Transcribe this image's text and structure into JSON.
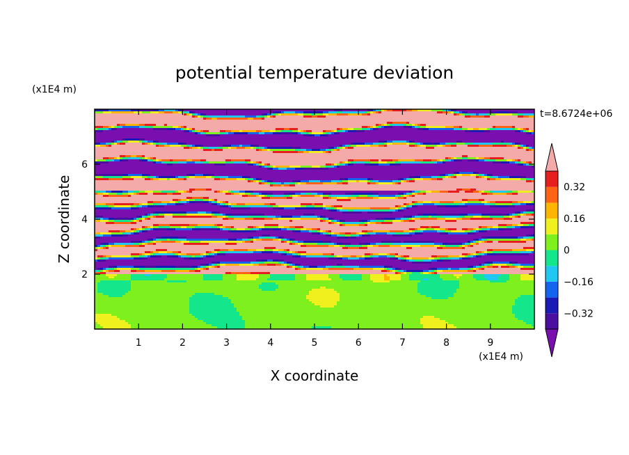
{
  "chart_data": {
    "type": "heatmap",
    "title": "potential temperature deviation",
    "xlabel": "X coordinate",
    "ylabel": "Z coordinate",
    "x_unit_label": "(x1E4 m)",
    "y_unit_label": "(x1E4 m)",
    "time_label": "t=8.6724e+06",
    "xlim": [
      0,
      10
    ],
    "ylim": [
      0,
      8
    ],
    "x_ticks": [
      1,
      2,
      3,
      4,
      5,
      6,
      7,
      8,
      9
    ],
    "y_ticks": [
      2,
      4,
      6
    ],
    "grid": false,
    "colorbar": {
      "levels": [
        -0.48,
        -0.4,
        -0.32,
        -0.24,
        -0.16,
        -0.08,
        0,
        0.08,
        0.16,
        0.24,
        0.32,
        0.4,
        0.48
      ],
      "colors": [
        "#7a0fb0",
        "#4a0fa0",
        "#1a1ab4",
        "#1464f0",
        "#1ec8f0",
        "#14e68c",
        "#7ef01e",
        "#f0f01e",
        "#ffb400",
        "#ff6414",
        "#e61e1e",
        "#f5aaaa"
      ],
      "tick_labels": [
        {
          "value": 0.32,
          "label": "0.32"
        },
        {
          "value": 0.16,
          "label": "0.16"
        },
        {
          "value": 0,
          "label": "0"
        },
        {
          "value": -0.16,
          "label": "−0.16"
        },
        {
          "value": -0.32,
          "label": "−0.32"
        }
      ],
      "extend": "both"
    },
    "regions": [
      {
        "z_range": [
          0,
          2
        ],
        "pattern": "lower layer mostly 0 to 0.08 (green / light green)"
      },
      {
        "z_range": [
          2,
          5
        ],
        "pattern": "thin horizontal bands spanning -0.48 to 0.48"
      },
      {
        "z_range": [
          5,
          8
        ],
        "pattern": "alternating bands dominated by >0.40 (pink) and <-0.40 (purple)"
      }
    ]
  }
}
